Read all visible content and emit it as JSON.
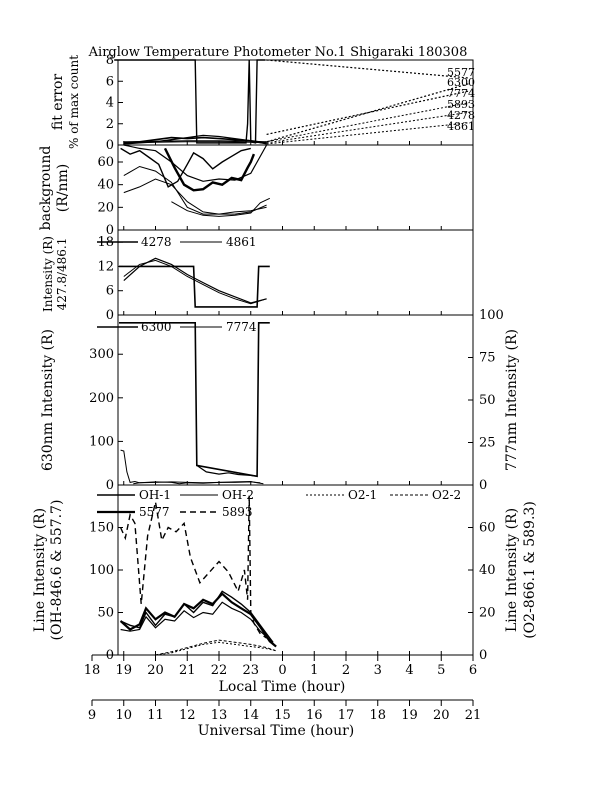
{
  "title": "Airglow Temperature Photometer No.1  Shigaraki  180308",
  "xaxis": {
    "local": {
      "label": "Local Time (hour)",
      "ticks": [
        "18",
        "19",
        "20",
        "21",
        "22",
        "23",
        "0",
        "1",
        "2",
        "3",
        "4",
        "5",
        "6"
      ]
    },
    "ut": {
      "label": "Universal Time (hour)",
      "ticks": [
        "9",
        "10",
        "11",
        "12",
        "13",
        "14",
        "15",
        "16",
        "17",
        "18",
        "19",
        "20",
        "21"
      ]
    }
  },
  "chart_data": [
    {
      "type": "line",
      "id": "fit-error",
      "ylabel_line1": "fit error",
      "ylabel_line2": "% of max count",
      "ylim": [
        0,
        8
      ],
      "yticks": [
        "0",
        "2",
        "4",
        "6",
        "8"
      ],
      "annotations": [
        "5577",
        "6300",
        "7774",
        "5893",
        "4278",
        "4861"
      ],
      "series": [
        {
          "name": "6300",
          "width": 1.4,
          "x": [
            18.7,
            21.25,
            21.3,
            22.85,
            22.9,
            22.95,
            23.0,
            23.15,
            23.2,
            23.4,
            23.45
          ],
          "y": [
            8,
            8,
            0.2,
            0.2,
            2,
            8,
            0.3,
            0.2,
            8,
            8,
            8
          ]
        },
        {
          "name": "5577",
          "width": 1.6,
          "x": [
            19.0,
            19.5,
            20.0,
            20.5,
            21.0,
            21.5,
            22.0,
            22.5,
            23.0,
            23.5
          ],
          "y": [
            0.2,
            0.3,
            0.5,
            0.7,
            0.6,
            0.7,
            0.6,
            0.5,
            0.4,
            0.2
          ]
        },
        {
          "name": "5893",
          "width": 1.3,
          "x": [
            19.0,
            19.5,
            20.0,
            20.5,
            21.0,
            21.5,
            22.0,
            22.5,
            23.0,
            23.5
          ],
          "y": [
            0.1,
            0.2,
            0.3,
            0.5,
            0.7,
            0.9,
            0.8,
            0.6,
            0.4,
            0.1
          ]
        },
        {
          "name": "4278",
          "width": 1.0,
          "x": [
            19.0,
            20.0,
            21.0,
            22.0,
            23.0,
            23.5
          ],
          "y": [
            0.3,
            0.35,
            0.4,
            0.4,
            0.35,
            0.3
          ]
        },
        {
          "name": "4861",
          "width": 1.0,
          "x": [
            19.0,
            20.0,
            21.0,
            22.0,
            23.0,
            23.5
          ],
          "y": [
            0.2,
            0.25,
            0.3,
            0.3,
            0.25,
            0.2
          ]
        }
      ],
      "extrapolations": [
        {
          "name": "5577",
          "x": [
            23.5,
            29.9
          ],
          "y": [
            8.0,
            6.3
          ],
          "width": 1.2
        },
        {
          "name": "6300",
          "x": [
            23.5,
            29.9
          ],
          "y": [
            0.3,
            5.8
          ],
          "width": 1.2
        },
        {
          "name": "7774",
          "x": [
            23.5,
            29.9
          ],
          "y": [
            1.0,
            5.1
          ],
          "width": 1.2
        },
        {
          "name": "5893",
          "x": [
            23.3,
            29.9
          ],
          "y": [
            0.2,
            4.0
          ],
          "width": 1.0
        },
        {
          "name": "4278",
          "x": [
            23.5,
            29.9
          ],
          "y": [
            0.2,
            3.1
          ],
          "width": 1.0
        },
        {
          "name": "4861",
          "x": [
            23.5,
            29.9
          ],
          "y": [
            0.1,
            2.1
          ],
          "width": 1.0
        }
      ]
    },
    {
      "type": "line",
      "id": "background",
      "ylabel_line1": "background",
      "ylabel_line2": "(R/nm)",
      "ylim": [
        0,
        75
      ],
      "yticks": [
        "0",
        "20",
        "40",
        "60"
      ],
      "series": [
        {
          "name": "6300",
          "width": 1.4,
          "x": [
            18.9,
            19.2,
            19.5,
            19.8,
            20.1,
            20.4,
            20.7,
            21.0,
            21.2,
            21.5,
            21.8,
            22.1,
            22.4,
            22.7,
            23.0
          ],
          "y": [
            72,
            67,
            70,
            64,
            58,
            38,
            43,
            58,
            68,
            63,
            54,
            60,
            65,
            70,
            72
          ]
        },
        {
          "name": "5577",
          "width": 2.4,
          "x": [
            20.3,
            20.6,
            20.9,
            21.2,
            21.5,
            21.8,
            22.1,
            22.4,
            22.7,
            22.9,
            23.0,
            23.1
          ],
          "y": [
            72,
            55,
            40,
            35,
            36,
            42,
            40,
            46,
            44,
            55,
            60,
            67
          ]
        },
        {
          "name": "5893",
          "width": 1.2,
          "x": [
            19.0,
            19.5,
            20.0,
            20.5,
            21.0,
            21.5,
            22.0,
            22.5,
            23.0,
            23.5
          ],
          "y": [
            75,
            72,
            70,
            60,
            48,
            43,
            45,
            44,
            50,
            75
          ]
        },
        {
          "name": "7774",
          "width": 1.0,
          "x": [
            19.0,
            19.5,
            20.0,
            20.5,
            21.0,
            21.5,
            22.0,
            22.5,
            23.0,
            23.5
          ],
          "y": [
            48,
            56,
            52,
            42,
            20,
            14,
            14,
            16,
            17,
            20
          ]
        },
        {
          "name": "4278",
          "width": 1.0,
          "x": [
            19.0,
            19.5,
            20.0,
            20.5,
            21.0,
            21.5,
            22.0,
            22.5,
            23.0,
            23.5
          ],
          "y": [
            33,
            38,
            45,
            40,
            25,
            16,
            14,
            14,
            16,
            22
          ]
        },
        {
          "name": "4861",
          "width": 1.0,
          "x": [
            20.5,
            21.0,
            21.5,
            22.0,
            22.5,
            23.0,
            23.3,
            23.6
          ],
          "y": [
            25,
            17,
            13,
            12,
            13,
            15,
            24,
            28
          ]
        }
      ]
    },
    {
      "type": "line",
      "id": "intensity-4278-4861",
      "ylabel_line1": "Intensity (R)",
      "ylabel_line2": "427.8/486.1",
      "ylim": [
        0,
        21
      ],
      "yticks": [
        "0",
        "6",
        "12",
        "18"
      ],
      "legend": [
        "4278",
        "4861"
      ],
      "series": [
        {
          "name": "4278",
          "width": 1.6,
          "x": [
            18.85,
            21.2,
            21.25,
            23.2,
            23.25,
            23.6
          ],
          "y": [
            12,
            12,
            2,
            2,
            12,
            12
          ]
        },
        {
          "name": "4861",
          "width": 1.2,
          "x": [
            19.0,
            19.5,
            20.0,
            20.5,
            21.0,
            21.5,
            22.0,
            22.5,
            23.0,
            23.5
          ],
          "y": [
            8.5,
            12,
            14,
            12.5,
            10,
            8,
            6,
            4.5,
            3,
            4
          ]
        },
        {
          "name": "4861-b",
          "width": 1.0,
          "x": [
            19.0,
            19.5,
            20.0,
            20.5,
            21.0,
            21.5,
            22.0,
            22.5,
            23.0,
            23.5
          ],
          "y": [
            9.5,
            12.5,
            13.5,
            12,
            9.5,
            7.5,
            5.5,
            4,
            2.8,
            4
          ]
        }
      ]
    },
    {
      "type": "line",
      "id": "intensity-6300-7774",
      "ylabel": "630nm Intensity (R)",
      "y2label": "777nm Intensity (R)",
      "ylim": [
        0,
        390
      ],
      "y2lim": [
        0,
        100
      ],
      "yticks": [
        "0",
        "100",
        "200",
        "300"
      ],
      "y2ticks": [
        "0",
        "25",
        "50",
        "75",
        "100"
      ],
      "legend": [
        "6300",
        "7774"
      ],
      "series": [
        {
          "name": "6300",
          "width": 1.6,
          "x": [
            18.85,
            21.25,
            21.3,
            23.2,
            23.25,
            23.6
          ],
          "y": [
            372,
            372,
            45,
            20,
            372,
            372
          ]
        },
        {
          "name": "6300-low",
          "width": 1.2,
          "x": [
            21.3,
            21.6,
            22.0,
            22.3,
            22.6,
            23.0,
            23.2
          ],
          "y": [
            45,
            30,
            25,
            28,
            24,
            22,
            20
          ]
        },
        {
          "name": "7774",
          "width": 1.0,
          "x": [
            18.9,
            19.0,
            19.1,
            19.2,
            19.35,
            19.5,
            20.0,
            20.5,
            20.75,
            21.0,
            21.5,
            22.0,
            22.5,
            23.0,
            23.2,
            23.4
          ],
          "y": [
            80,
            78,
            30,
            6,
            8,
            5,
            7,
            6,
            3,
            5,
            4,
            6,
            7,
            8,
            5,
            3
          ]
        },
        {
          "name": "7774-b",
          "width": 1.0,
          "x": [
            19.3,
            19.5,
            20.0,
            20.5,
            21.0,
            21.5,
            22.0,
            22.5,
            23.0,
            23.3
          ],
          "y": [
            3,
            5,
            6,
            7,
            6,
            5,
            6,
            6,
            7,
            5
          ]
        }
      ]
    },
    {
      "type": "line",
      "id": "line-intensity",
      "ylabel_line1": "Line Intensity (R)",
      "ylabel_line2": "(OH-846.6 & 557.7)",
      "y2label_line1": "Line Intensity (R)",
      "y2label_line2": "(O2-866.1 & 589.3)",
      "ylim": [
        0,
        200
      ],
      "y2lim": [
        0,
        80
      ],
      "yticks": [
        "0",
        "50",
        "100",
        "150"
      ],
      "y2ticks": [
        "0",
        "20",
        "40",
        "60"
      ],
      "legend": [
        "OH-1",
        "OH-2",
        "O2-1",
        "O2-2",
        "5577",
        "5893"
      ],
      "series": [
        {
          "name": "OH-1",
          "width": 1.4,
          "x": [
            18.9,
            19.2,
            19.5,
            19.7,
            20.0,
            20.3,
            20.6,
            20.9,
            21.2,
            21.5,
            21.8,
            22.1,
            22.4,
            22.7,
            23.0,
            23.3,
            23.5,
            23.7
          ],
          "y": [
            40,
            35,
            32,
            50,
            35,
            48,
            45,
            60,
            50,
            62,
            58,
            75,
            68,
            60,
            50,
            35,
            25,
            15
          ]
        },
        {
          "name": "OH-2",
          "width": 1.2,
          "x": [
            18.9,
            19.2,
            19.5,
            19.7,
            20.0,
            20.3,
            20.6,
            20.9,
            21.2,
            21.5,
            21.8,
            22.1,
            22.4,
            22.7,
            23.0,
            23.3,
            23.6,
            23.8
          ],
          "y": [
            30,
            28,
            30,
            45,
            32,
            42,
            40,
            52,
            44,
            50,
            48,
            62,
            55,
            50,
            42,
            28,
            18,
            10
          ]
        },
        {
          "name": "5577",
          "width": 2.2,
          "x": [
            18.9,
            19.2,
            19.5,
            19.7,
            20.0,
            20.3,
            20.6,
            20.9,
            21.2,
            21.5,
            21.8,
            22.1,
            22.4,
            22.7,
            23.0,
            23.3,
            23.6,
            23.8
          ],
          "y": [
            40,
            30,
            36,
            55,
            42,
            50,
            45,
            60,
            55,
            65,
            60,
            72,
            62,
            55,
            48,
            33,
            16,
            10
          ]
        },
        {
          "name": "5893",
          "axis": "y2",
          "width": 1.4,
          "dash": "6,4",
          "x": [
            18.9,
            19.05,
            19.2,
            19.35,
            19.55,
            19.75,
            20.0,
            20.2,
            20.4,
            20.65,
            20.9,
            21.1,
            21.4,
            21.7,
            22.0,
            22.3,
            22.6,
            22.8,
            22.9,
            22.95,
            23.0,
            23.1,
            23.3,
            23.5
          ],
          "y": [
            60,
            55,
            66,
            62,
            24,
            56,
            72,
            54,
            60,
            58,
            62,
            46,
            34,
            39,
            44,
            39,
            30,
            40,
            26,
            75,
            20,
            15,
            10,
            8
          ]
        },
        {
          "name": "O2-1",
          "axis": "y2",
          "width": 1.0,
          "dash": "2,2",
          "x": [
            20.0,
            20.5,
            21.0,
            21.5,
            22.0,
            22.5,
            23.0,
            23.5,
            23.8
          ],
          "y": [
            0,
            1,
            3,
            5,
            6,
            5,
            4,
            3,
            2
          ]
        },
        {
          "name": "O2-2",
          "axis": "y2",
          "width": 1.0,
          "dash": "3,2",
          "x": [
            20.0,
            20.5,
            21.0,
            21.5,
            22.0,
            22.5,
            23.0,
            23.5,
            23.8
          ],
          "y": [
            0,
            1.5,
            3.5,
            5.5,
            7,
            6,
            5,
            3.5,
            2
          ]
        }
      ]
    }
  ]
}
